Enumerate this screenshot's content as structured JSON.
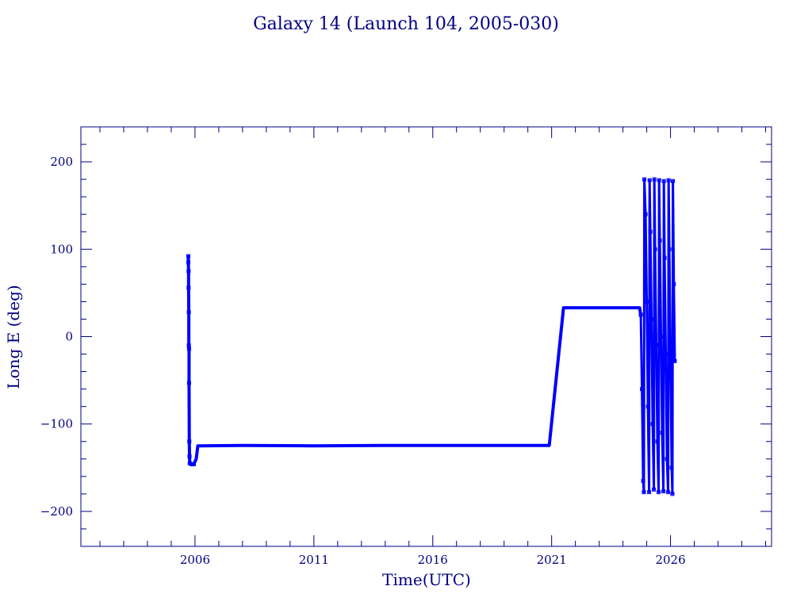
{
  "colors": {
    "axis": "#000080",
    "series": "#0000ff",
    "background": "#ffffff"
  },
  "chart_data": {
    "type": "line",
    "title": "Galaxy 14 (Launch 104, 2005-030)",
    "xlabel": "Time(UTC)",
    "ylabel": "Long E (deg)",
    "xlim": [
      2001.2,
      2030.25
    ],
    "ylim": [
      -240,
      240
    ],
    "x_ticks": [
      2006,
      2011,
      2016,
      2021,
      2026
    ],
    "x_tick_labels": [
      "2006",
      "2011",
      "2016",
      "2021",
      "2026"
    ],
    "y_ticks": [
      200,
      100,
      0,
      -100,
      -200
    ],
    "y_tick_labels": [
      "200",
      "100",
      "0",
      "−100",
      "−200"
    ],
    "grid": false,
    "series": [
      {
        "points": [
          [
            2005.72,
            92
          ],
          [
            2005.72,
            85
          ],
          [
            2005.73,
            75
          ],
          [
            2005.73,
            56
          ],
          [
            2005.74,
            28
          ],
          [
            2005.74,
            -10
          ],
          [
            2005.75,
            -14
          ],
          [
            2005.75,
            -53
          ],
          [
            2005.76,
            -120
          ],
          [
            2005.77,
            -137
          ],
          [
            2005.78,
            -145
          ],
          [
            2005.85,
            -146
          ],
          [
            2005.95,
            -146
          ],
          [
            2006.05,
            -140
          ],
          [
            2006.12,
            -125
          ],
          [
            2008.0,
            -124.5
          ],
          [
            2011.0,
            -125
          ],
          [
            2014.0,
            -124.5
          ],
          [
            2017.0,
            -124.5
          ],
          [
            2020.0,
            -124.5
          ],
          [
            2020.9,
            -124.5
          ],
          [
            2021.5,
            33
          ],
          [
            2024.7,
            33
          ],
          [
            2024.75,
            25
          ]
        ]
      },
      {
        "points": [
          [
            2024.75,
            25
          ],
          [
            2024.8,
            -60
          ],
          [
            2024.85,
            -165
          ],
          [
            2024.88,
            -178
          ],
          [
            2024.9,
            180
          ],
          [
            2024.95,
            140
          ],
          [
            2025.0,
            40
          ],
          [
            2025.05,
            -80
          ],
          [
            2025.1,
            -178
          ],
          [
            2025.12,
            179
          ],
          [
            2025.15,
            120
          ],
          [
            2025.2,
            20
          ],
          [
            2025.25,
            -100
          ],
          [
            2025.3,
            -175
          ],
          [
            2025.32,
            180
          ],
          [
            2025.35,
            100
          ],
          [
            2025.4,
            -10
          ],
          [
            2025.45,
            -120
          ],
          [
            2025.5,
            -178
          ],
          [
            2025.52,
            179
          ],
          [
            2025.55,
            110
          ],
          [
            2025.6,
            0
          ],
          [
            2025.65,
            -110
          ],
          [
            2025.7,
            -177
          ],
          [
            2025.72,
            178
          ],
          [
            2025.75,
            90
          ],
          [
            2025.8,
            -20
          ],
          [
            2025.85,
            -140
          ],
          [
            2025.9,
            -178
          ],
          [
            2025.92,
            179
          ],
          [
            2025.95,
            100
          ],
          [
            2026.0,
            -30
          ],
          [
            2026.05,
            -150
          ],
          [
            2026.08,
            -180
          ],
          [
            2026.1,
            178
          ],
          [
            2026.14,
            60
          ],
          [
            2026.18,
            -28
          ]
        ]
      }
    ]
  }
}
